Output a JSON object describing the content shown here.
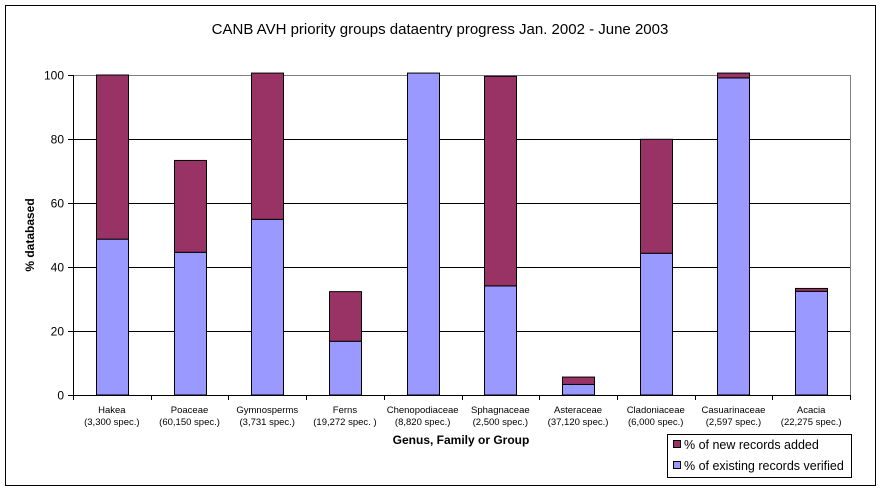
{
  "chart_data": {
    "type": "bar",
    "stacked": true,
    "title": "CANB AVH priority groups dataentry progress Jan. 2002 - June 2003",
    "xlabel": "Genus, Family or Group",
    "ylabel": "% databased",
    "ylim": [
      0,
      100
    ],
    "yticks": [
      0,
      20,
      40,
      60,
      80,
      100
    ],
    "grid": true,
    "legend_position": "bottom-right",
    "categories": [
      {
        "name": "Hakea",
        "sub": "(3,300 spec.)"
      },
      {
        "name": "Poaceae",
        "sub": "(60,150 spec.)"
      },
      {
        "name": "Gymnosperms",
        "sub": "(3,731 spec.)"
      },
      {
        "name": "Ferns",
        "sub": "(19,272 spec. )"
      },
      {
        "name": "Chenopodiaceae",
        "sub": "(8,820 spec.)"
      },
      {
        "name": "Sphagnaceae",
        "sub": "(2,500 spec.)"
      },
      {
        "name": "Asteraceae",
        "sub": "(37,120 spec.)"
      },
      {
        "name": "Cladoniaceae",
        "sub": "(6,000 spec.)"
      },
      {
        "name": "Casuarinaceae",
        "sub": "(2,597 spec.)"
      },
      {
        "name": "Acacia",
        "sub": "(22,275 spec.)"
      }
    ],
    "series": [
      {
        "name": "% of existing records verified",
        "color": "#9999ff",
        "values": [
          48.7,
          44.6,
          54.9,
          16.8,
          100.6,
          34.1,
          3.3,
          44.3,
          99.1,
          32.4
        ]
      },
      {
        "name": "% of new records added",
        "color": "#993366",
        "values": [
          51.3,
          28.7,
          45.7,
          15.5,
          0,
          65.5,
          2.3,
          35.6,
          1.5,
          0.9
        ]
      }
    ],
    "legend_order": [
      1,
      0
    ]
  }
}
